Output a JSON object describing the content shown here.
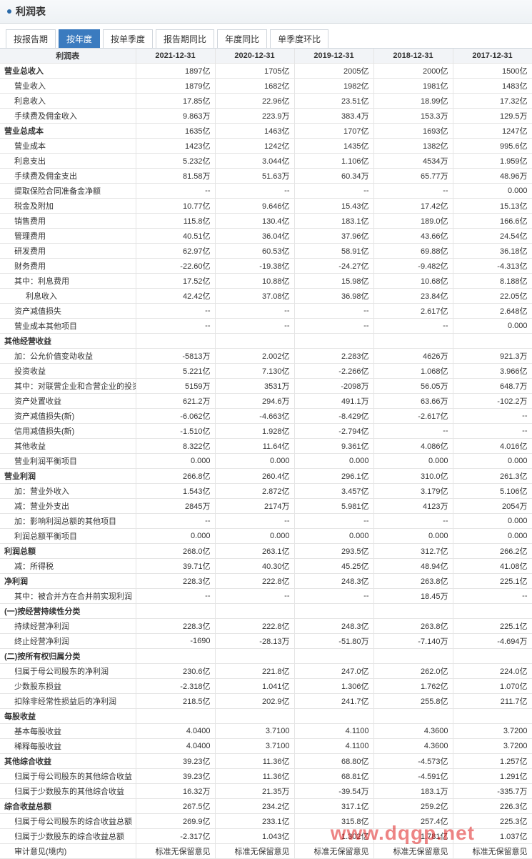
{
  "header": {
    "title": "利润表"
  },
  "tabs": [
    {
      "label": "按报告期",
      "active": false
    },
    {
      "label": "按年度",
      "active": true
    },
    {
      "label": "按单季度",
      "active": false
    },
    {
      "label": "报告期同比",
      "active": false
    },
    {
      "label": "年度同比",
      "active": false
    },
    {
      "label": "单季度环比",
      "active": false
    }
  ],
  "columns": [
    "利润表",
    "2021-12-31",
    "2020-12-31",
    "2019-12-31",
    "2018-12-31",
    "2017-12-31"
  ],
  "col_widths": [
    "190px",
    "111px",
    "111px",
    "111px",
    "111px",
    "111px"
  ],
  "rows": [
    {
      "label": "营业总收入",
      "indent": 0,
      "section": true,
      "vals": [
        "1897亿",
        "1705亿",
        "2005亿",
        "2000亿",
        "1500亿"
      ]
    },
    {
      "label": "营业收入",
      "indent": 1,
      "vals": [
        "1879亿",
        "1682亿",
        "1982亿",
        "1981亿",
        "1483亿"
      ]
    },
    {
      "label": "利息收入",
      "indent": 1,
      "vals": [
        "17.85亿",
        "22.96亿",
        "23.51亿",
        "18.99亿",
        "17.32亿"
      ]
    },
    {
      "label": "手续费及佣金收入",
      "indent": 1,
      "vals": [
        "9.863万",
        "223.9万",
        "383.4万",
        "153.3万",
        "129.5万"
      ]
    },
    {
      "label": "营业总成本",
      "indent": 0,
      "section": true,
      "vals": [
        "1635亿",
        "1463亿",
        "1707亿",
        "1693亿",
        "1247亿"
      ]
    },
    {
      "label": "营业成本",
      "indent": 1,
      "vals": [
        "1423亿",
        "1242亿",
        "1435亿",
        "1382亿",
        "995.6亿"
      ]
    },
    {
      "label": "利息支出",
      "indent": 1,
      "vals": [
        "5.232亿",
        "3.044亿",
        "1.106亿",
        "4534万",
        "1.959亿"
      ]
    },
    {
      "label": "手续费及佣金支出",
      "indent": 1,
      "vals": [
        "81.58万",
        "51.63万",
        "60.34万",
        "65.77万",
        "48.96万"
      ]
    },
    {
      "label": "提取保险合同准备金净额",
      "indent": 1,
      "vals": [
        "--",
        "--",
        "--",
        "--",
        "0.000"
      ]
    },
    {
      "label": "税金及附加",
      "indent": 1,
      "vals": [
        "10.77亿",
        "9.646亿",
        "15.43亿",
        "17.42亿",
        "15.13亿"
      ]
    },
    {
      "label": "销售费用",
      "indent": 1,
      "vals": [
        "115.8亿",
        "130.4亿",
        "183.1亿",
        "189.0亿",
        "166.6亿"
      ]
    },
    {
      "label": "管理费用",
      "indent": 1,
      "vals": [
        "40.51亿",
        "36.04亿",
        "37.96亿",
        "43.66亿",
        "24.54亿"
      ]
    },
    {
      "label": "研发费用",
      "indent": 1,
      "vals": [
        "62.97亿",
        "60.53亿",
        "58.91亿",
        "69.88亿",
        "36.18亿"
      ]
    },
    {
      "label": "财务费用",
      "indent": 1,
      "vals": [
        "-22.60亿",
        "-19.38亿",
        "-24.27亿",
        "-9.482亿",
        "-4.313亿"
      ]
    },
    {
      "label": "其中：利息费用",
      "indent": 1,
      "vals": [
        "17.52亿",
        "10.88亿",
        "15.98亿",
        "10.68亿",
        "8.188亿"
      ]
    },
    {
      "label": "利息收入",
      "indent": 2,
      "vals": [
        "42.42亿",
        "37.08亿",
        "36.98亿",
        "23.84亿",
        "22.05亿"
      ]
    },
    {
      "label": "资产减值损失",
      "indent": 1,
      "vals": [
        "--",
        "--",
        "--",
        "2.617亿",
        "2.648亿"
      ]
    },
    {
      "label": "营业成本其他项目",
      "indent": 1,
      "vals": [
        "--",
        "--",
        "--",
        "--",
        "0.000"
      ]
    },
    {
      "label": "其他经营收益",
      "indent": 0,
      "section": true,
      "vals": [
        "",
        "",
        "",
        "",
        ""
      ]
    },
    {
      "label": "加：公允价值变动收益",
      "indent": 1,
      "vals": [
        "-5813万",
        "2.002亿",
        "2.283亿",
        "4626万",
        "921.3万"
      ]
    },
    {
      "label": "投资收益",
      "indent": 1,
      "vals": [
        "5.221亿",
        "7.130亿",
        "-2.266亿",
        "1.068亿",
        "3.966亿"
      ]
    },
    {
      "label": "其中：对联营企业和合营企业的投资收益",
      "indent": 1,
      "vals": [
        "5159万",
        "3531万",
        "-2098万",
        "56.05万",
        "648.7万"
      ]
    },
    {
      "label": "资产处置收益",
      "indent": 1,
      "vals": [
        "621.2万",
        "294.6万",
        "491.1万",
        "63.66万",
        "-102.2万"
      ]
    },
    {
      "label": "资产减值损失(新)",
      "indent": 1,
      "vals": [
        "-6.062亿",
        "-4.663亿",
        "-8.429亿",
        "-2.617亿",
        "--"
      ]
    },
    {
      "label": "信用减值损失(新)",
      "indent": 1,
      "vals": [
        "-1.510亿",
        "1.928亿",
        "-2.794亿",
        "--",
        "--"
      ]
    },
    {
      "label": "其他收益",
      "indent": 1,
      "vals": [
        "8.322亿",
        "11.64亿",
        "9.361亿",
        "4.086亿",
        "4.016亿"
      ]
    },
    {
      "label": "营业利润平衡项目",
      "indent": 1,
      "vals": [
        "0.000",
        "0.000",
        "0.000",
        "0.000",
        "0.000"
      ]
    },
    {
      "label": "营业利润",
      "indent": 0,
      "section": true,
      "vals": [
        "266.8亿",
        "260.4亿",
        "296.1亿",
        "310.0亿",
        "261.3亿"
      ]
    },
    {
      "label": "加：营业外收入",
      "indent": 1,
      "vals": [
        "1.543亿",
        "2.872亿",
        "3.457亿",
        "3.179亿",
        "5.106亿"
      ]
    },
    {
      "label": "减：营业外支出",
      "indent": 1,
      "vals": [
        "2845万",
        "2174万",
        "5.981亿",
        "4123万",
        "2054万"
      ]
    },
    {
      "label": "加：影响利润总额的其他项目",
      "indent": 1,
      "vals": [
        "--",
        "--",
        "--",
        "--",
        "0.000"
      ]
    },
    {
      "label": "利润总额平衡项目",
      "indent": 1,
      "vals": [
        "0.000",
        "0.000",
        "0.000",
        "0.000",
        "0.000"
      ]
    },
    {
      "label": "利润总额",
      "indent": 0,
      "section": true,
      "vals": [
        "268.0亿",
        "263.1亿",
        "293.5亿",
        "312.7亿",
        "266.2亿"
      ]
    },
    {
      "label": "减：所得税",
      "indent": 1,
      "vals": [
        "39.71亿",
        "40.30亿",
        "45.25亿",
        "48.94亿",
        "41.08亿"
      ]
    },
    {
      "label": "净利润",
      "indent": 0,
      "section": true,
      "vals": [
        "228.3亿",
        "222.8亿",
        "248.3亿",
        "263.8亿",
        "225.1亿"
      ]
    },
    {
      "label": "其中：被合并方在合并前实现利润",
      "indent": 1,
      "vals": [
        "--",
        "--",
        "--",
        "18.45万",
        "--"
      ]
    },
    {
      "label": "(一)按经营持续性分类",
      "indent": 0,
      "section": true,
      "vals": [
        "",
        "",
        "",
        "",
        ""
      ]
    },
    {
      "label": "持续经营净利润",
      "indent": 1,
      "vals": [
        "228.3亿",
        "222.8亿",
        "248.3亿",
        "263.8亿",
        "225.1亿"
      ]
    },
    {
      "label": "终止经营净利润",
      "indent": 1,
      "vals": [
        "-1690",
        "-28.13万",
        "-51.80万",
        "-7.140万",
        "-4.694万"
      ]
    },
    {
      "label": "(二)按所有权归属分类",
      "indent": 0,
      "section": true,
      "vals": [
        "",
        "",
        "",
        "",
        ""
      ]
    },
    {
      "label": "归属于母公司股东的净利润",
      "indent": 1,
      "vals": [
        "230.6亿",
        "221.8亿",
        "247.0亿",
        "262.0亿",
        "224.0亿"
      ]
    },
    {
      "label": "少数股东损益",
      "indent": 1,
      "vals": [
        "-2.318亿",
        "1.041亿",
        "1.306亿",
        "1.762亿",
        "1.070亿"
      ]
    },
    {
      "label": "扣除非经常性损益后的净利润",
      "indent": 1,
      "vals": [
        "218.5亿",
        "202.9亿",
        "241.7亿",
        "255.8亿",
        "211.7亿"
      ]
    },
    {
      "label": "每股收益",
      "indent": 0,
      "section": true,
      "vals": [
        "",
        "",
        "",
        "",
        ""
      ]
    },
    {
      "label": "基本每股收益",
      "indent": 1,
      "vals": [
        "4.0400",
        "3.7100",
        "4.1100",
        "4.3600",
        "3.7200"
      ]
    },
    {
      "label": "稀释每股收益",
      "indent": 1,
      "vals": [
        "4.0400",
        "3.7100",
        "4.1100",
        "4.3600",
        "3.7200"
      ]
    },
    {
      "label": "其他综合收益",
      "indent": 0,
      "section": true,
      "vals": [
        "39.23亿",
        "11.36亿",
        "68.80亿",
        "-4.573亿",
        "1.257亿"
      ]
    },
    {
      "label": "归属于母公司股东的其他综合收益",
      "indent": 1,
      "vals": [
        "39.23亿",
        "11.36亿",
        "68.81亿",
        "-4.591亿",
        "1.291亿"
      ]
    },
    {
      "label": "归属于少数股东的其他综合收益",
      "indent": 1,
      "vals": [
        "16.32万",
        "21.35万",
        "-39.54万",
        "183.1万",
        "-335.7万"
      ]
    },
    {
      "label": "综合收益总额",
      "indent": 0,
      "section": true,
      "vals": [
        "267.5亿",
        "234.2亿",
        "317.1亿",
        "259.2亿",
        "226.3亿"
      ]
    },
    {
      "label": "归属于母公司股东的综合收益总额",
      "indent": 1,
      "vals": [
        "269.9亿",
        "233.1亿",
        "315.8亿",
        "257.4亿",
        "225.3亿"
      ]
    },
    {
      "label": "归属于少数股东的综合收益总额",
      "indent": 1,
      "vals": [
        "-2.317亿",
        "1.043亿",
        "1.302亿",
        "1.781亿",
        "1.037亿"
      ]
    },
    {
      "label": "审计意见(境内)",
      "indent": 1,
      "vals": [
        "标准无保留意见",
        "标准无保留意见",
        "标准无保留意见",
        "标准无保留意见",
        "标准无保留意见"
      ]
    }
  ],
  "watermark": "www.dqgp.net"
}
